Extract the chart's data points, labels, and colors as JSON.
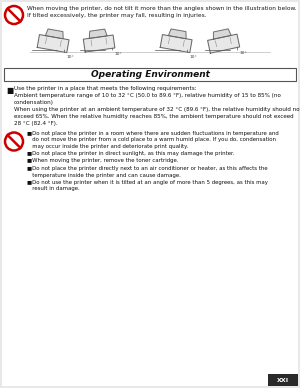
{
  "bg_color": "#e8e8e8",
  "page_bg": "#ffffff",
  "title_section": "Operating Environment",
  "warning_text_top": "When moving the printer, do not tilt it more than the angles shown in the illustration below.\nIf tilted excessively, the printer may fall, resulting in injuries.",
  "bullet_main": "Use the printer in a place that meets the following requirements:",
  "bullet_sub1": "Ambient temperature range of 10 to 32 °C (50.0 to 89.6 °F), relative humidity of 15 to 85% (no\ncondensation)",
  "bullet_sub2": "When using the printer at an ambient temperature of 32 °C (89.6 °F), the relative humidity should not\nexceed 65%. When the relative humidity reaches 85%, the ambient temperature should not exceed\n28 °C (82.4 °F).",
  "warning_items": [
    "Do not place the printer in a room where there are sudden fluctuations in temperature and\n   do not move the printer from a cold place to a warm humid place. If you do, condensation\n   may occur inside the printer and deteriorate print quality.",
    "Do not place the printer in direct sunlight, as this may damage the printer.",
    "When moving the printer, remove the toner cartridge.",
    "Do not place the printer directly next to an air conditioner or heater, as this affects the\n   temperature inside the printer and can cause damage.",
    "Do not use the printer when it is tilted at an angle of more than 5 degrees, as this may\n   result in damage."
  ],
  "page_number": "XXI",
  "footer_color": "#2a2a2a",
  "text_color": "#1a1a1a",
  "symbol_color": "#cc0000"
}
